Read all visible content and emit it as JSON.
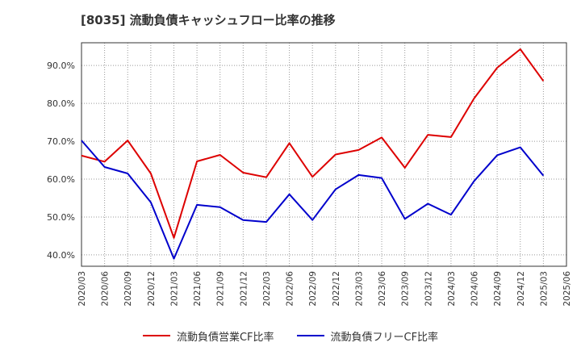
{
  "chart_data": {
    "type": "line",
    "title": "[8035]  流動負債キャッシュフロー比率の推移",
    "x": [
      "2020/03",
      "2020/06",
      "2020/09",
      "2020/12",
      "2021/03",
      "2021/06",
      "2021/09",
      "2021/12",
      "2022/03",
      "2022/06",
      "2022/09",
      "2022/12",
      "2023/03",
      "2023/06",
      "2023/09",
      "2023/12",
      "2024/03",
      "2024/06",
      "2024/09",
      "2024/12",
      "2025/03",
      "2025/06"
    ],
    "ylim": [
      37,
      96
    ],
    "yticks": [
      40,
      50,
      60,
      70,
      80,
      90
    ],
    "ytick_labels": [
      "40.0%",
      "50.0%",
      "60.0%",
      "70.0%",
      "80.0%",
      "90.0%"
    ],
    "grid": true,
    "legend_position": "bottom",
    "series": [
      {
        "name": "流動負債営業CF比率",
        "color": "#dd0000",
        "values": [
          66.2,
          64.6,
          70.2,
          61.5,
          44.5,
          64.7,
          66.4,
          61.7,
          60.5,
          69.5,
          60.6,
          66.5,
          67.7,
          71.0,
          63.0,
          71.7,
          71.1,
          81.3,
          89.4,
          94.3,
          85.9,
          null
        ]
      },
      {
        "name": "流動負債フリーCF比率",
        "color": "#0000cc",
        "values": [
          70.2,
          63.2,
          61.5,
          53.9,
          39.0,
          53.2,
          52.6,
          49.2,
          48.7,
          56.0,
          49.2,
          57.3,
          61.1,
          60.3,
          49.5,
          53.5,
          50.6,
          59.5,
          66.3,
          68.4,
          60.9,
          null
        ]
      }
    ]
  }
}
